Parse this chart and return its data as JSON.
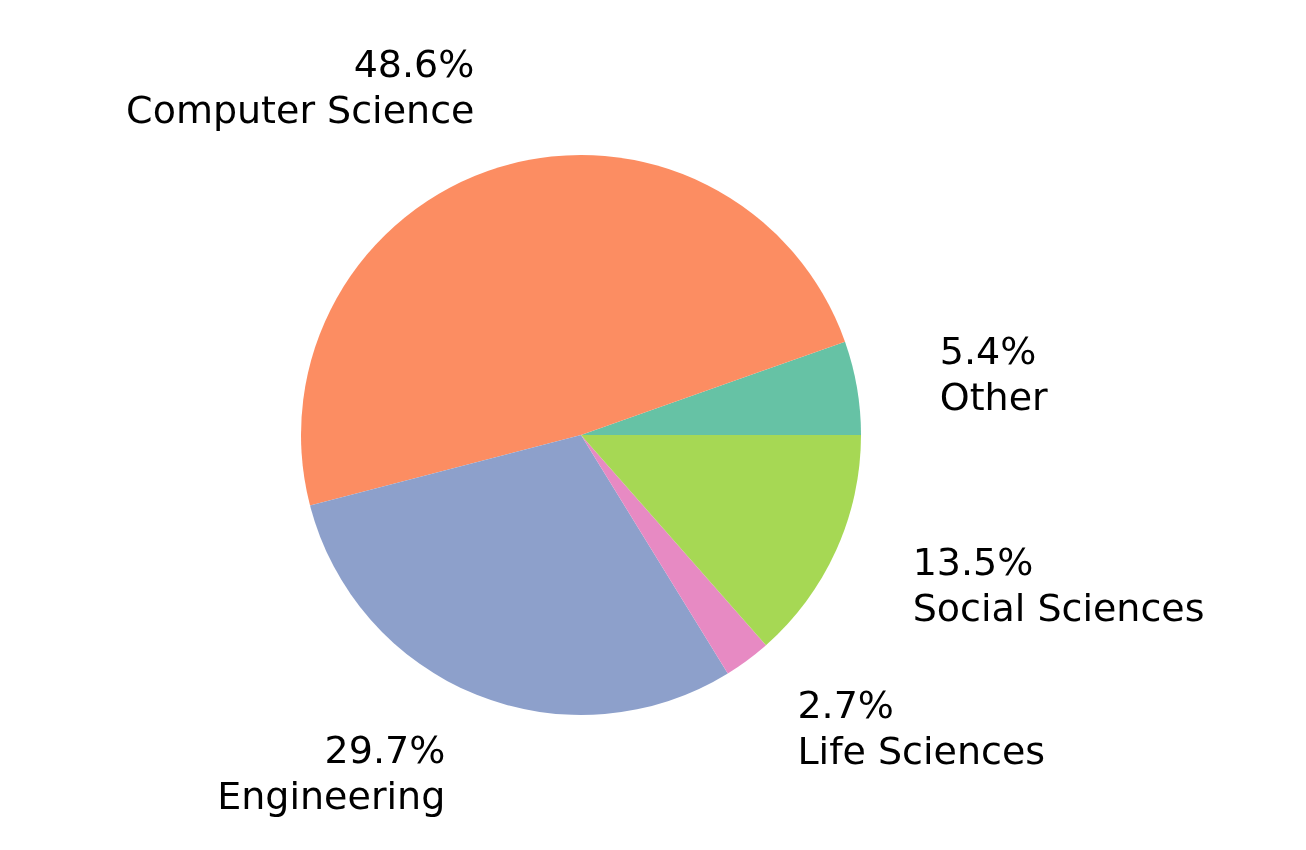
{
  "chart_data": {
    "type": "pie",
    "categories": [
      "Other",
      "Computer Science",
      "Engineering",
      "Life Sciences",
      "Social Sciences"
    ],
    "values": [
      5.4,
      48.6,
      29.7,
      2.7,
      13.5
    ],
    "value_labels": [
      "5.4%",
      "48.6%",
      "29.7%",
      "2.7%",
      "13.5%"
    ],
    "colors": [
      "#66c2a5",
      "#fc8d62",
      "#8da0cb",
      "#e78ac3",
      "#a6d854"
    ],
    "legend": false
  }
}
